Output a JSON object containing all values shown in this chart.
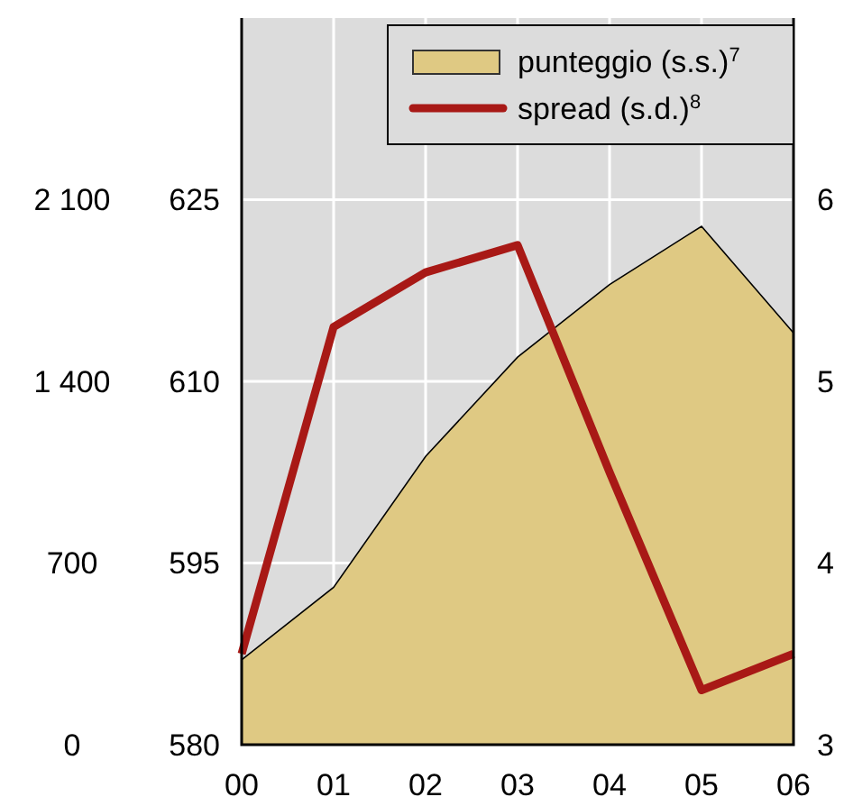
{
  "chart_data": {
    "type": "area",
    "categories": [
      "00",
      "01",
      "02",
      "03",
      "04",
      "05",
      "06"
    ],
    "series": [
      {
        "name": "punteggio (s.s.)$^{7}$",
        "axis": "y",
        "color": "#dfc983",
        "values": [
          587,
          593,
          603.8,
          612,
          618,
          622.8,
          614
        ]
      },
      {
        "name": "spread (s.d.)$^{8}$",
        "type": "line",
        "axis": "y2",
        "color": "#a81916",
        "values": [
          3.5,
          5.3,
          5.6,
          5.75,
          4.5,
          3.3,
          3.5
        ]
      }
    ],
    "ylim": [
      580,
      640
    ],
    "yticks": [
      580,
      595,
      610,
      625
    ],
    "y2lim": [
      3,
      7
    ],
    "y2ticks": [
      3,
      4,
      5,
      6
    ],
    "y3lim": [
      0,
      2800
    ],
    "y3ticks": [
      0,
      700,
      {
        "value": 1400,
        "label": "1 400"
      },
      {
        "value": 2100,
        "label": "2 100"
      }
    ],
    "grid": true,
    "legend": "top right",
    "line_style": "solid"
  }
}
